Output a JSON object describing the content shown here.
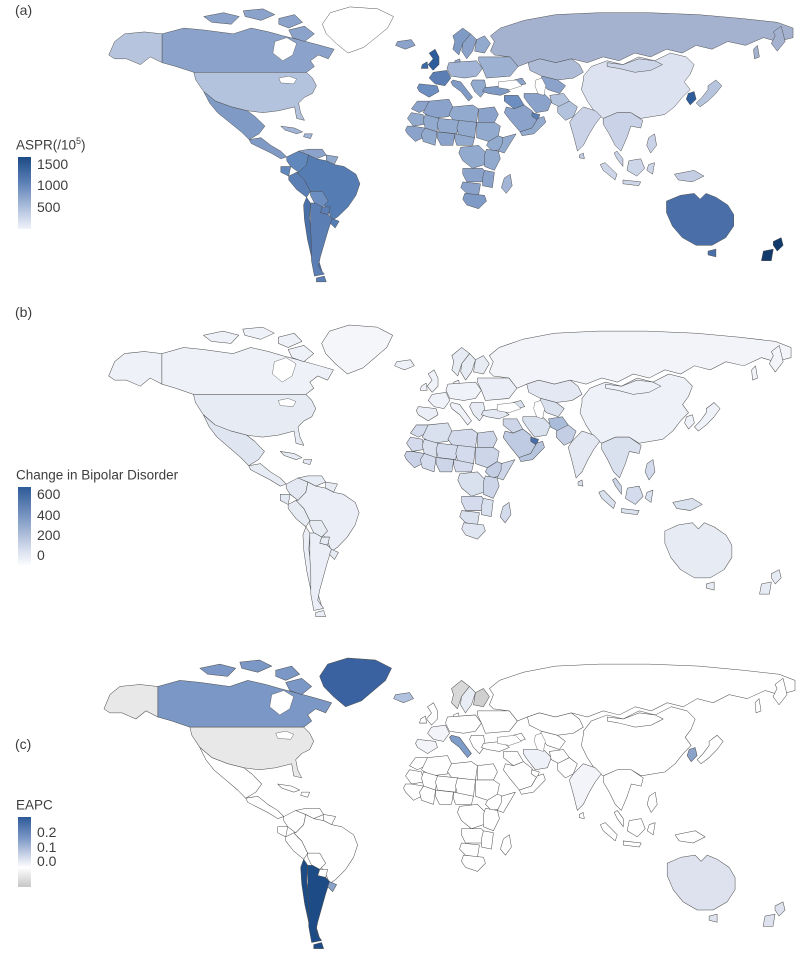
{
  "panel_labels": {
    "a": "(a)",
    "b": "(b)",
    "c": "(c)"
  },
  "chart_data": [
    {
      "type": "choropleth",
      "panel": "a",
      "legend_title_pre": "ASPR(/10",
      "legend_title_sup": "5",
      "legend_title_post": ")",
      "colorbar_ticks": [
        "1500",
        "1000",
        "500"
      ],
      "tick_positions_pct": [
        10,
        40,
        70
      ],
      "gradient_stops": [
        [
          "0%",
          "#1d4b86"
        ],
        [
          "35%",
          "#5b7fb5"
        ],
        [
          "70%",
          "#aebfdc"
        ],
        [
          "100%",
          "#f0f3fa"
        ]
      ],
      "border_color": "#4d4d4d",
      "region_fills": {
        "alaska": "#b7c4dd",
        "canada": "#8ba3cb",
        "canada-islands": "#8ba3cb",
        "greenland": "#ffffff",
        "usa": "#b3c2dd",
        "mexico": "#7f9ac4",
        "central-america": "#7f9ac4",
        "cuba": "#a3b5d6",
        "hispaniola": "#a3b5d6",
        "colombia": "#6088bd",
        "venezuela": "#8ba3cb",
        "guianas": "#93aacf",
        "ecuador": "#6088bd",
        "peru": "#5b7fb5",
        "brazil": "#567cb4",
        "bolivia": "#6c8ec0",
        "paraguay": "#5b7fb5",
        "chile": "#4a70a9",
        "argentina": "#5b7fb5",
        "uruguay": "#567cb4",
        "iceland": "#8ba3cb",
        "uk": "#2f5c9b",
        "ireland": "#3d68a6",
        "norway": "#7f9ac4",
        "sweden": "#8ba3cb",
        "finland": "#93aacf",
        "denmark": "#93aacf",
        "central-europe": "#a3b5d6",
        "france": "#5b7fb5",
        "iberia": "#6c8ec0",
        "italy": "#7f9ac4",
        "balkans": "#93aacf",
        "eastern-europe": "#9db1d3",
        "russia": "#a4b2d0",
        "kazakhstan": "#aebcd7",
        "central-asia": "#8ba3cb",
        "turkey": "#7f9ac4",
        "caucasus": "#8ba3cb",
        "syria-iraq": "#6c8ec0",
        "saudi": "#8ba3cb",
        "gulf-states": "#5b7fb5",
        "yemen-oman": "#93aacf",
        "iran": "#8ba3cb",
        "afghanistan": "#b3c2dd",
        "pakistan": "#b3c2dd",
        "india": "#c9d2e7",
        "sri-lanka": "#c3cde4",
        "china": "#dce2f0",
        "mongolia": "#cdd6e9",
        "korea": "#2f5c9b",
        "japan": "#b7c4dd",
        "se-asia": "#c9d2e7",
        "malay": "#c9d2e7",
        "sumatra": "#cdd6e9",
        "borneo": "#cdd6e9",
        "java": "#cdd6e9",
        "sulawesi": "#cdd6e9",
        "new-guinea": "#c3cde4",
        "philippines": "#c9d2e7",
        "australia": "#4a6fa8",
        "tasmania": "#4a6fa8",
        "nz-north": "#123a6b",
        "nz-south": "#123a6b",
        "morocco": "#8ba3cb",
        "algeria": "#8ba3cb",
        "libya": "#93aacf",
        "egypt": "#8ba3cb",
        "mauritania": "#93aacf",
        "mali": "#93aacf",
        "niger": "#93aacf",
        "chad": "#93aacf",
        "sudan": "#93aacf",
        "west-africa": "#8ba3cb",
        "ghana-ivory": "#93aacf",
        "nigeria": "#8ba3cb",
        "cameroon-car": "#93aacf",
        "ethiopia": "#93aacf",
        "somalia": "#93aacf",
        "drc": "#93aacf",
        "east-africa": "#93aacf",
        "angola-zambia": "#8ba3cb",
        "mozambique": "#8ba3cb",
        "namibia-botswana": "#8ba3cb",
        "south-africa": "#7f9ac4",
        "madagascar": "#a3b5d6"
      }
    },
    {
      "type": "choropleth",
      "panel": "b",
      "legend_title_pre": "Change in Bipolar Disorder",
      "legend_title_sup": "",
      "legend_title_post": "",
      "colorbar_ticks": [
        "600",
        "400",
        "200",
        "0"
      ],
      "tick_positions_pct": [
        10,
        36,
        62,
        88
      ],
      "gradient_stops": [
        [
          "0%",
          "#2d5a98"
        ],
        [
          "40%",
          "#7f9ac4"
        ],
        [
          "75%",
          "#ccd5e8"
        ],
        [
          "100%",
          "#fbfcfe"
        ]
      ],
      "border_color": "#4d4d4d",
      "region_fills": {
        "alaska": "#eef1f8",
        "canada": "#eef1f8",
        "canada-islands": "#eef1f8",
        "greenland": "#f4f6fa",
        "usa": "#e7ebf4",
        "mexico": "#e0e6f1",
        "central-america": "#e7ebf4",
        "cuba": "#e7ebf4",
        "hispaniola": "#e3e8f2",
        "colombia": "#e3e8f2",
        "venezuela": "#e7ebf4",
        "guianas": "#e7ebf4",
        "ecuador": "#e3e8f2",
        "peru": "#e7ebf4",
        "brazil": "#ebeef7",
        "bolivia": "#e7ebf4",
        "paraguay": "#e7ebf4",
        "chile": "#ebeef7",
        "argentina": "#ebeef7",
        "uruguay": "#e7ebf4",
        "iceland": "#eef1f8",
        "uk": "#f0f2f9",
        "ireland": "#f0f2f9",
        "norway": "#e7ebf4",
        "sweden": "#e7ebf4",
        "finland": "#e7ebf4",
        "denmark": "#ebeef7",
        "central-europe": "#f0f2f9",
        "france": "#f0f2f9",
        "iberia": "#ebeef7",
        "italy": "#f0f2f9",
        "balkans": "#e7ebf4",
        "eastern-europe": "#ebeef7",
        "russia": "#f2f4fa",
        "kazakhstan": "#e3e8f2",
        "central-asia": "#d9e0ee",
        "turkey": "#e3e8f2",
        "caucasus": "#d9e0ee",
        "syria-iraq": "#cdd6e9",
        "saudi": "#bfcbe2",
        "gulf-states": "#4a6fa8",
        "yemen-oman": "#b7c4dd",
        "iran": "#d9e0ee",
        "afghanistan": "#a9bcd9",
        "pakistan": "#c3cde4",
        "india": "#e3e8f2",
        "sri-lanka": "#d9e0ee",
        "china": "#eef1f8",
        "mongolia": "#eef1f8",
        "korea": "#eef1f8",
        "japan": "#f0f2f9",
        "se-asia": "#d9e0ee",
        "malay": "#cdd6e9",
        "sumatra": "#d9e0ee",
        "borneo": "#d3dbec",
        "java": "#d9e0ee",
        "sulawesi": "#d9e0ee",
        "new-guinea": "#d9e0ee",
        "philippines": "#d3dbec",
        "australia": "#e7ebf4",
        "tasmania": "#e7ebf4",
        "nz-north": "#e7ebf4",
        "nz-south": "#e7ebf4",
        "morocco": "#d3dbec",
        "algeria": "#d9e0ee",
        "libya": "#d3dbec",
        "egypt": "#cdd6e9",
        "mauritania": "#d3dbec",
        "mali": "#d9e0ee",
        "niger": "#d3dbec",
        "chad": "#d3dbec",
        "sudan": "#cdd6e9",
        "west-africa": "#c9d2e7",
        "ghana-ivory": "#d3dbec",
        "nigeria": "#cdd6e9",
        "cameroon-car": "#d3dbec",
        "ethiopia": "#c3cde4",
        "somalia": "#cdd6e9",
        "drc": "#d9e0ee",
        "east-africa": "#cdd6e9",
        "angola-zambia": "#d3dbec",
        "mozambique": "#d9e0ee",
        "namibia-botswana": "#d9e0ee",
        "south-africa": "#e0e6f1",
        "madagascar": "#d3dbec"
      }
    },
    {
      "type": "choropleth",
      "panel": "c",
      "legend_title_pre": "EAPC",
      "legend_title_sup": "",
      "legend_title_post": "",
      "colorbar_ticks": [
        "0.2",
        "0.1",
        "0.0"
      ],
      "tick_positions_pct": [
        22,
        44,
        64
      ],
      "gradient_stops": [
        [
          "0%",
          "#2d5a98"
        ],
        [
          "30%",
          "#7b97c6"
        ],
        [
          "55%",
          "#ccd5e8"
        ],
        [
          "72%",
          "#ffffff"
        ],
        [
          "100%",
          "#c6c6c6"
        ]
      ],
      "border_color": "#4d4d4d",
      "region_fills": {
        "alaska": "#e8e8e8",
        "canada": "#7b97c6",
        "canada-islands": "#7b97c6",
        "greenland": "#3a62a0",
        "usa": "#e8e8e8",
        "mexico": "#ffffff",
        "central-america": "#ffffff",
        "cuba": "#ffffff",
        "hispaniola": "#ffffff",
        "colombia": "#ffffff",
        "venezuela": "#ffffff",
        "guianas": "#ffffff",
        "ecuador": "#ffffff",
        "peru": "#ffffff",
        "brazil": "#ffffff",
        "bolivia": "#ffffff",
        "paraguay": "#ffffff",
        "chile": "#1d4b86",
        "argentina": "#1d4b86",
        "uruguay": "#8aa3c9",
        "iceland": "#b0c2dd",
        "uk": "#ffffff",
        "ireland": "#ffffff",
        "norway": "#d8d8d8",
        "sweden": "#e8ecf5",
        "finland": "#cfcfcf",
        "denmark": "#ffffff",
        "central-europe": "#ffffff",
        "france": "#f2f4fa",
        "iberia": "#f2f4fa",
        "italy": "#7e9cc8",
        "balkans": "#ffffff",
        "eastern-europe": "#ffffff",
        "russia": "#ffffff",
        "kazakhstan": "#ffffff",
        "central-asia": "#ffffff",
        "turkey": "#ffffff",
        "caucasus": "#ffffff",
        "syria-iraq": "#ffffff",
        "saudi": "#ffffff",
        "gulf-states": "#ffffff",
        "yemen-oman": "#ffffff",
        "iran": "#eef1f8",
        "afghanistan": "#ffffff",
        "pakistan": "#ffffff",
        "india": "#f2f4fa",
        "sri-lanka": "#ffffff",
        "china": "#ffffff",
        "mongolia": "#ffffff",
        "korea": "#8aa3c9",
        "japan": "#ffffff",
        "se-asia": "#ffffff",
        "malay": "#ffffff",
        "sumatra": "#ffffff",
        "borneo": "#ffffff",
        "java": "#ffffff",
        "sulawesi": "#ffffff",
        "new-guinea": "#ffffff",
        "philippines": "#ffffff",
        "australia": "#dde2ee",
        "tasmania": "#dde2ee",
        "nz-north": "#dde2ee",
        "nz-south": "#dde2ee",
        "morocco": "#ffffff",
        "algeria": "#ffffff",
        "libya": "#ffffff",
        "egypt": "#ffffff",
        "mauritania": "#ffffff",
        "mali": "#ffffff",
        "niger": "#ffffff",
        "chad": "#ffffff",
        "sudan": "#ffffff",
        "west-africa": "#ffffff",
        "ghana-ivory": "#ffffff",
        "nigeria": "#ffffff",
        "cameroon-car": "#ffffff",
        "ethiopia": "#ffffff",
        "somalia": "#ffffff",
        "drc": "#ffffff",
        "east-africa": "#ffffff",
        "angola-zambia": "#ffffff",
        "mozambique": "#ffffff",
        "namibia-botswana": "#ffffff",
        "south-africa": "#ffffff",
        "madagascar": "#ffffff"
      }
    }
  ]
}
